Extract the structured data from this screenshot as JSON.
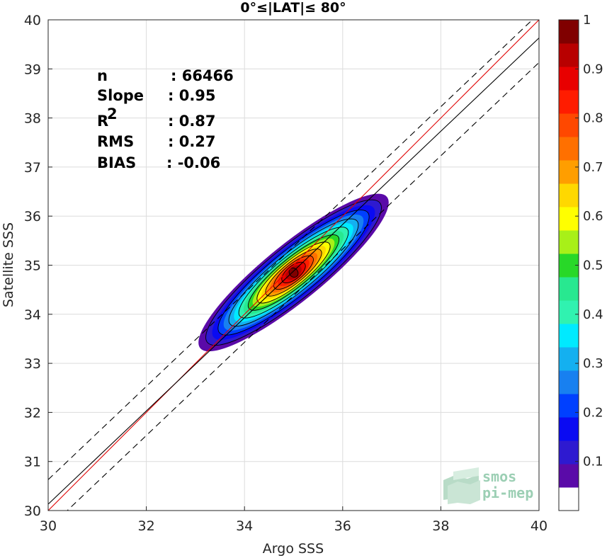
{
  "chart_data": {
    "type": "heatmap",
    "title": "0°≤|LAT|≤ 80°",
    "xlabel": "Argo SSS",
    "ylabel": "Satellite SSS",
    "xlim": [
      30,
      40
    ],
    "ylim": [
      30,
      40
    ],
    "xticks": [
      30,
      32,
      34,
      36,
      38,
      40
    ],
    "yticks": [
      30,
      31,
      32,
      33,
      34,
      35,
      36,
      37,
      38,
      39,
      40
    ],
    "grid": true,
    "density_center": [
      35.0,
      34.85
    ],
    "density_levels": [
      0.05,
      0.1,
      0.15,
      0.2,
      0.25,
      0.3,
      0.35,
      0.4,
      0.45,
      0.5,
      0.55,
      0.6,
      0.65,
      0.7,
      0.75,
      0.8,
      0.85,
      0.9,
      0.95,
      1
    ],
    "colorbar": {
      "ticks": [
        "0.1",
        "0.2",
        "0.3",
        "0.4",
        "0.5",
        "0.6",
        "0.7",
        "0.8",
        "0.9",
        "1"
      ],
      "tick_values": [
        0.1,
        0.2,
        0.3,
        0.4,
        0.5,
        0.6,
        0.7,
        0.8,
        0.9,
        1
      ],
      "colors": [
        "#ffffff",
        "#5a0aa8",
        "#2e1ad0",
        "#0a0af2",
        "#0040ff",
        "#1880f0",
        "#14b0f0",
        "#00eaff",
        "#30f2b0",
        "#28e890",
        "#28d828",
        "#a8f018",
        "#ffff00",
        "#ffd800",
        "#ff9e00",
        "#ff7000",
        "#ff4800",
        "#ff1c00",
        "#e80000",
        "#b80000",
        "#800000"
      ]
    },
    "lines": [
      {
        "name": "1:1",
        "color": "#e00000",
        "slope": 1,
        "intercept": 0,
        "style": "solid"
      },
      {
        "name": "fit",
        "color": "#000000",
        "slope": 0.95,
        "intercept": 1.63,
        "style": "solid"
      },
      {
        "name": "upper bound",
        "color": "#000000",
        "slope": 0.95,
        "intercept": 2.13,
        "style": "dashed"
      },
      {
        "name": "lower bound",
        "color": "#000000",
        "slope": 0.95,
        "intercept": 1.13,
        "style": "dashed"
      }
    ],
    "stats": [
      {
        "label": "n",
        "value": ": 66466"
      },
      {
        "label": "Slope",
        "value": ": 0.95"
      },
      {
        "label": "R",
        "sup": "2",
        "value": ": 0.87"
      },
      {
        "label": "RMS",
        "value": ": 0.27"
      },
      {
        "label": "BIAS",
        "value": ": -0.06"
      }
    ]
  },
  "logo": {
    "line1": "smos",
    "line2": "pi-mep"
  }
}
